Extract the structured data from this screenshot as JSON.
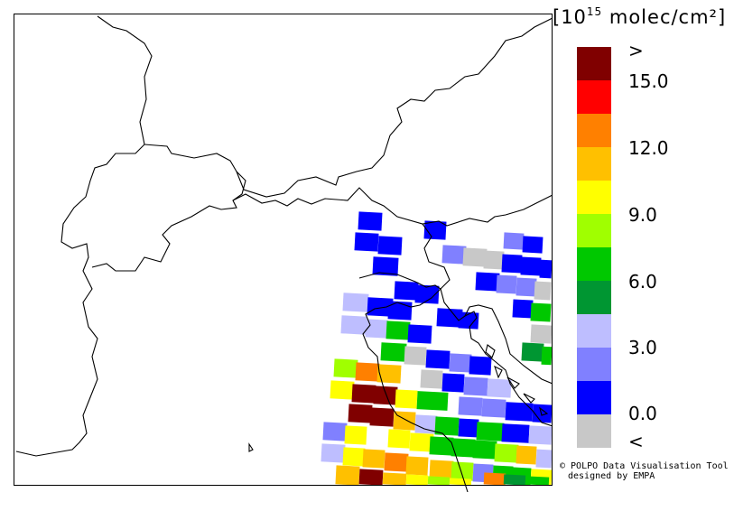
{
  "colorbar": {
    "unit_prefix": "[10",
    "unit_exponent": "15",
    "unit_suffix": " molec/cm²]",
    "tick_labels": [
      ">",
      "15.0",
      "12.0",
      "9.0",
      "6.0",
      "3.0",
      "0.0",
      "<"
    ],
    "colors": [
      "#800000",
      "#ff0000",
      "#ff8000",
      "#ffc000",
      "#ffff00",
      "#a0ff00",
      "#00c800",
      "#009632",
      "#bebeff",
      "#8080ff",
      "#0000ff",
      "#c8c8c8"
    ]
  },
  "credits": {
    "line1": "© POLPO Data Visualisation Tool",
    "line2": "designed by EMPA"
  }
}
